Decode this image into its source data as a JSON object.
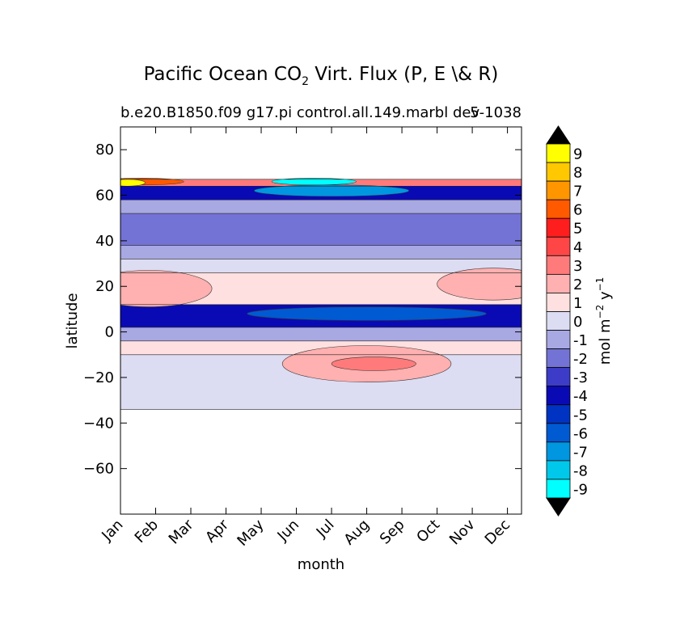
{
  "chart_data": {
    "type": "heatmap",
    "title": "Pacific Ocean CO",
    "title_sub": "2",
    "title_rest": " Virt. Flux (P, E \\& R)",
    "subtitle_left": "b.e20.B1850.f09 g17.pi control.all.149.marbl dev",
    "subtitle_right": "5-1038",
    "xlabel": "month",
    "ylabel": "latitude",
    "x_categories": [
      "Jan",
      "Feb",
      "Mar",
      "Apr",
      "May",
      "Jun",
      "Jul",
      "Aug",
      "Sep",
      "Oct",
      "Nov",
      "Dec"
    ],
    "x_range": [
      0,
      11.4
    ],
    "ylim": [
      -80,
      90
    ],
    "yticks": [
      80,
      60,
      40,
      20,
      0,
      -20,
      -40,
      -60
    ],
    "y_tick_labels": [
      "80",
      "60",
      "40",
      "20",
      "0",
      "−20",
      "−40",
      "−60"
    ],
    "data_lat_range": [
      -34,
      67
    ],
    "colorbar": {
      "label": "mol m",
      "label_sup1": "−2",
      "label_mid": " y",
      "label_sup2": "−1",
      "levels": [
        9,
        8,
        7,
        6,
        5,
        4,
        3,
        2,
        1,
        0,
        -1,
        -2,
        -3,
        -4,
        -5,
        -6,
        -7,
        -8,
        -9
      ],
      "level_labels": [
        "9",
        "8",
        "7",
        "6",
        "5",
        "4",
        "3",
        "2",
        "1",
        "0",
        "-1",
        "-2",
        "-3",
        "-4",
        "-5",
        "-6",
        "-7",
        "-8",
        "-9"
      ],
      "colors": [
        "#ffff00",
        "#ffc800",
        "#ff9600",
        "#ff5a00",
        "#ff1e1e",
        "#ff4646",
        "#ff7b7b",
        "#ffb0b0",
        "#ffe0e0",
        "#dcdcf2",
        "#a8a8e3",
        "#7373d6",
        "#3c3cc8",
        "#0a0ab4",
        "#0033c2",
        "#005ad2",
        "#0096e0",
        "#00c8ea",
        "#00ffff"
      ],
      "extend_color": "#000000"
    },
    "bands": [
      {
        "lat_top": 67,
        "lat_bottom": 64,
        "value": 3
      },
      {
        "lat_top": 64,
        "lat_bottom": 58,
        "value": -4
      },
      {
        "lat_top": 58,
        "lat_bottom": 52,
        "value": -1
      },
      {
        "lat_top": 52,
        "lat_bottom": 38,
        "value": -2
      },
      {
        "lat_top": 38,
        "lat_bottom": 32,
        "value": -1
      },
      {
        "lat_top": 32,
        "lat_bottom": 26,
        "value": 0
      },
      {
        "lat_top": 26,
        "lat_bottom": 12,
        "value": 1
      },
      {
        "lat_top": 12,
        "lat_bottom": 2,
        "value": -4
      },
      {
        "lat_top": 2,
        "lat_bottom": -4,
        "value": -1
      },
      {
        "lat_top": -4,
        "lat_bottom": -10,
        "value": 1
      },
      {
        "lat_top": -10,
        "lat_bottom": -34,
        "value": 0
      }
    ],
    "blobs": [
      {
        "month": 0.8,
        "lat": 19,
        "month_radius": 1.8,
        "lat_radius": 8,
        "value": 2
      },
      {
        "month": 10.6,
        "lat": 21,
        "month_radius": 1.6,
        "lat_radius": 7,
        "value": 2
      },
      {
        "month": 7,
        "lat": -14,
        "month_radius": 2.4,
        "lat_radius": 8,
        "value": 2
      },
      {
        "month": 7.2,
        "lat": -14,
        "month_radius": 1.2,
        "lat_radius": 3,
        "value": 3
      },
      {
        "month": 7,
        "lat": 8,
        "month_radius": 3.4,
        "lat_radius": 3,
        "value": -6
      },
      {
        "month": 6,
        "lat": 62,
        "month_radius": 2.2,
        "lat_radius": 2.5,
        "value": -7
      },
      {
        "month": 5.5,
        "lat": 66,
        "month_radius": 1.2,
        "lat_radius": 1.5,
        "value": -9
      },
      {
        "month": 0.6,
        "lat": 66,
        "month_radius": 1.2,
        "lat_radius": 1.5,
        "value": 6
      },
      {
        "month": 0.2,
        "lat": 65.5,
        "month_radius": 0.5,
        "lat_radius": 1.5,
        "value": 9
      }
    ]
  }
}
